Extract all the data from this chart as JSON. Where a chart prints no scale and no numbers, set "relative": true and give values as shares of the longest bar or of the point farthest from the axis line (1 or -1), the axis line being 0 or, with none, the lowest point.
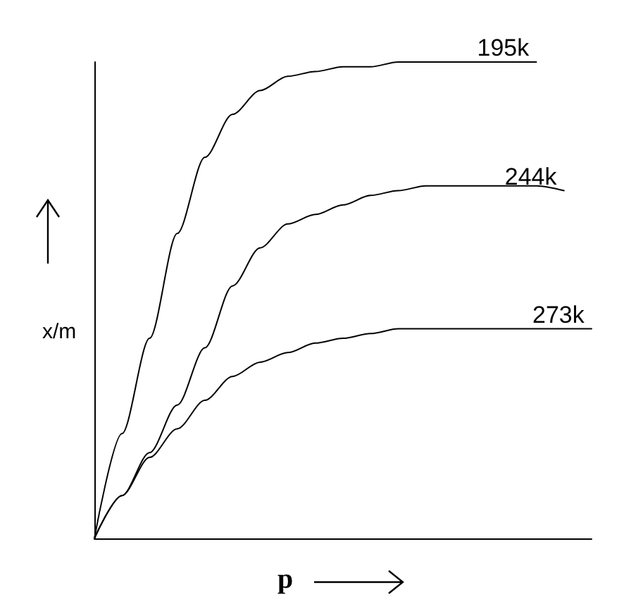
{
  "chart_data": {
    "type": "line",
    "relative": true,
    "xlabel": "p",
    "ylabel": "x/m",
    "legend": false,
    "grid": false,
    "marker": "none",
    "line_style": "solid",
    "categories": [
      null,
      null,
      null,
      null,
      null,
      null,
      null,
      null,
      null,
      null,
      null,
      null,
      null,
      null,
      null,
      null,
      null,
      null,
      null
    ],
    "series": [
      {
        "name": "195k",
        "color": "#000000",
        "values": [
          0,
          0.22,
          0.42,
          0.64,
          0.8,
          0.89,
          0.94,
          0.97,
          0.98,
          0.99,
          0.99,
          1,
          1,
          1,
          1,
          1,
          1,
          null,
          null
        ]
      },
      {
        "name": "244k",
        "color": "#000000",
        "values": [
          0,
          0.09,
          0.18,
          0.28,
          0.4,
          0.53,
          0.61,
          0.66,
          0.68,
          0.7,
          0.72,
          0.73,
          0.74,
          0.74,
          0.74,
          0.74,
          0.74,
          0.73,
          null
        ]
      },
      {
        "name": "273k",
        "color": "#000000",
        "values": [
          0,
          0.09,
          0.17,
          0.23,
          0.29,
          0.34,
          0.37,
          0.39,
          0.41,
          0.42,
          0.43,
          0.44,
          0.44,
          0.44,
          0.44,
          0.44,
          0.44,
          0.44,
          0.44
        ]
      }
    ]
  }
}
